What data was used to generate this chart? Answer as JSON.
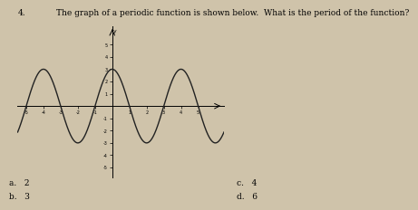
{
  "title_number": "4.",
  "title_text": "The graph of a periodic function is shown below.  What is the period of the function?",
  "xmin": -5.5,
  "xmax": 6.5,
  "ymin": -5.8,
  "ymax": 6.5,
  "amplitude": 3,
  "period": 4,
  "phase_shift": 1,
  "x_ticks": [
    -5,
    -4,
    -3,
    -2,
    -1,
    1,
    2,
    3,
    4,
    5
  ],
  "y_ticks": [
    -5,
    -4,
    -3,
    -2,
    -1,
    1,
    2,
    3,
    4,
    5
  ],
  "curve_color": "#222222",
  "background_color": "#cfc3aa",
  "answer_a": "a.   2",
  "answer_b": "b.   3",
  "answer_c": "c.   4",
  "answer_d": "d.   6"
}
